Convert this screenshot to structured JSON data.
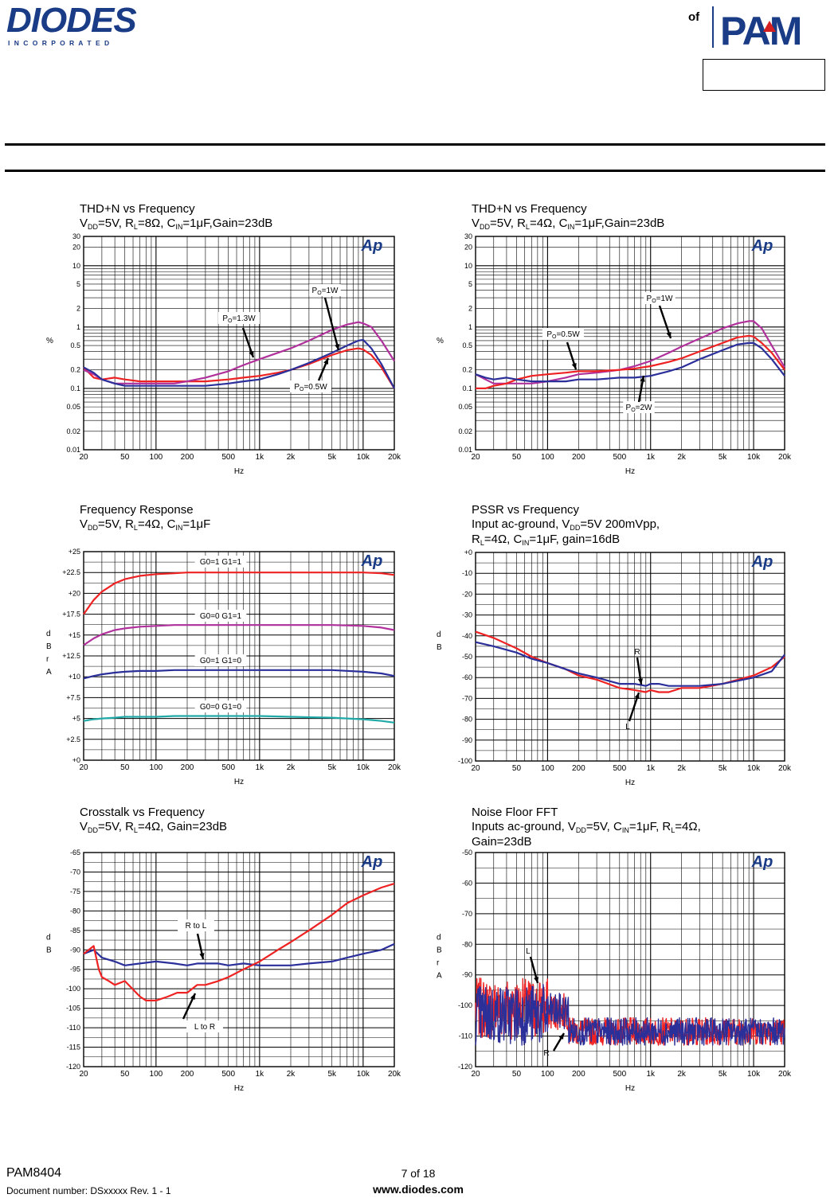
{
  "header": {
    "left_logo_text": "DIODES",
    "left_logo_sub": "I N C O R P O R A T E D",
    "right_of": "of",
    "right_logo_text": "PAM",
    "right_box": ""
  },
  "footer": {
    "part": "PAM8404",
    "doc_number": "Document number: DSxxxxx Rev. 1 - 1",
    "page": "7 of 18",
    "website": "www.diodes.com"
  },
  "colors": {
    "red": "#ee2222",
    "magenta": "#b0309c",
    "blue": "#2b2f9a",
    "teal": "#22aaa8",
    "grid": "#000000"
  },
  "charts": [
    {
      "id": "thdn-8ohm",
      "title": "THD+N vs Frequency",
      "subtitle_parts": [
        [
          "V",
          "n"
        ],
        [
          "DD",
          "s"
        ],
        [
          "=5V, R",
          "n"
        ],
        [
          "L",
          "s"
        ],
        [
          "=8Ω, C",
          "n"
        ],
        [
          "IN",
          "s"
        ],
        [
          "=1μF,Gain=23dB",
          "n"
        ]
      ],
      "ylabel": "%",
      "xlabel": "Hz",
      "yticks": [
        "30",
        "20",
        "10",
        "5",
        "2",
        "1",
        "0.5",
        "0.2",
        "0.1",
        "0.05",
        "0.02",
        "0.01"
      ],
      "xticks": [
        "20",
        "50",
        "100",
        "200",
        "500",
        "1k",
        "2k",
        "5k",
        "10k",
        "20k"
      ],
      "annotations": [
        "PO=1W",
        "PO=1.3W",
        "PO=0.5W"
      ]
    },
    {
      "id": "thdn-4ohm",
      "title": "THD+N vs Frequency",
      "subtitle_parts": [
        [
          "V",
          "n"
        ],
        [
          "DD",
          "s"
        ],
        [
          "=5V, R",
          "n"
        ],
        [
          "L",
          "s"
        ],
        [
          "=4Ω, C",
          "n"
        ],
        [
          "IN",
          "s"
        ],
        [
          "=1μF,Gain=23dB",
          "n"
        ]
      ],
      "ylabel": "%",
      "xlabel": "Hz",
      "yticks": [
        "30",
        "20",
        "10",
        "5",
        "2",
        "1",
        "0.5",
        "0.2",
        "0.1",
        "0.05",
        "0.02",
        "0.01"
      ],
      "xticks": [
        "20",
        "50",
        "100",
        "200",
        "500",
        "1k",
        "2k",
        "5k",
        "10k",
        "20k"
      ],
      "annotations": [
        "PO=1W",
        "PO=0.5W",
        "PO=2W"
      ]
    },
    {
      "id": "freq-response",
      "title": "Frequency Response",
      "subtitle_parts": [
        [
          "V",
          "n"
        ],
        [
          "DD",
          "s"
        ],
        [
          "=5V, R",
          "n"
        ],
        [
          "L",
          "s"
        ],
        [
          "=4Ω, C",
          "n"
        ],
        [
          "IN",
          "s"
        ],
        [
          "=1μF",
          "n"
        ]
      ],
      "ylabel": "d B r A",
      "xlabel": "Hz",
      "yticks": [
        "+25",
        "+22.5",
        "+20",
        "+17.5",
        "+15",
        "+12.5",
        "+10",
        "+7.5",
        "+5",
        "+2.5",
        "+0"
      ],
      "xticks": [
        "20",
        "50",
        "100",
        "200",
        "500",
        "1k",
        "2k",
        "5k",
        "10k",
        "20k"
      ],
      "annotations": [
        "G0=1 G1=1",
        "G0=0 G1=1",
        "G0=1 G1=0",
        "G0=0 G1=0"
      ]
    },
    {
      "id": "psrr",
      "title": "PSSR vs Frequency",
      "subtitle_parts": [
        [
          "Input ac-ground, V",
          "n"
        ],
        [
          "DD",
          "s"
        ],
        [
          "=5V 200mVpp,",
          "n"
        ]
      ],
      "subtitle2_parts": [
        [
          "R",
          "n"
        ],
        [
          "L",
          "s"
        ],
        [
          "=4Ω, C",
          "n"
        ],
        [
          "IN",
          "s"
        ],
        [
          "=1μF, gain=16dB",
          "n"
        ]
      ],
      "ylabel": "d B",
      "xlabel": "Hz",
      "yticks": [
        "+0",
        "-10",
        "-20",
        "-30",
        "-40",
        "-50",
        "-60",
        "-70",
        "-80",
        "-90",
        "-100"
      ],
      "xticks": [
        "20",
        "50",
        "100",
        "200",
        "500",
        "1k",
        "2k",
        "5k",
        "10k",
        "20k"
      ],
      "annotations": [
        "R",
        "L"
      ]
    },
    {
      "id": "crosstalk",
      "title": "Crosstalk vs Frequency",
      "subtitle_parts": [
        [
          "V",
          "n"
        ],
        [
          "DD",
          "s"
        ],
        [
          "=5V, R",
          "n"
        ],
        [
          "L",
          "s"
        ],
        [
          "=4Ω, Gain=23dB",
          "n"
        ]
      ],
      "ylabel": "d B",
      "xlabel": "Hz",
      "yticks": [
        "-65",
        "-70",
        "-75",
        "-80",
        "-85",
        "-90",
        "-95",
        "-100",
        "-105",
        "-110",
        "-115",
        "-120"
      ],
      "xticks": [
        "20",
        "50",
        "100",
        "200",
        "500",
        "1k",
        "2k",
        "5k",
        "10k",
        "20k"
      ],
      "annotations": [
        "R to L",
        "L to R"
      ]
    },
    {
      "id": "noise-fft",
      "title": "Noise Floor FFT",
      "subtitle_parts": [
        [
          "Inputs ac-ground, V",
          "n"
        ],
        [
          "DD",
          "s"
        ],
        [
          "=5V, C",
          "n"
        ],
        [
          "IN",
          "s"
        ],
        [
          "=1μF, R",
          "n"
        ],
        [
          "L",
          "s"
        ],
        [
          "=4Ω,",
          "n"
        ]
      ],
      "subtitle2_parts": [
        [
          "Gain=23dB",
          "n"
        ]
      ],
      "ylabel": "d B r A",
      "xlabel": "Hz",
      "yticks": [
        "-50",
        "-60",
        "-70",
        "-80",
        "-90",
        "-100",
        "-110",
        "-120"
      ],
      "xticks": [
        "20",
        "50",
        "100",
        "200",
        "500",
        "1k",
        "2k",
        "5k",
        "10k",
        "20k"
      ],
      "annotations": [
        "L",
        "R"
      ]
    }
  ],
  "chart_data": [
    {
      "type": "line",
      "x_scale": "log",
      "y_scale": "log",
      "xlim": [
        20,
        20000
      ],
      "ylim": [
        0.01,
        30
      ],
      "series": [
        {
          "name": "PO=1W",
          "color": "#ee2222",
          "x": [
            20,
            25,
            30,
            40,
            50,
            70,
            100,
            150,
            200,
            300,
            500,
            700,
            1000,
            1500,
            2000,
            3000,
            5000,
            7000,
            9000,
            10000,
            12000,
            15000,
            20000
          ],
          "y": [
            0.22,
            0.15,
            0.14,
            0.15,
            0.14,
            0.13,
            0.13,
            0.13,
            0.13,
            0.13,
            0.14,
            0.15,
            0.16,
            0.18,
            0.2,
            0.25,
            0.35,
            0.42,
            0.45,
            0.43,
            0.35,
            0.22,
            0.1
          ]
        },
        {
          "name": "PO=1.3W",
          "color": "#b0309c",
          "x": [
            20,
            25,
            30,
            40,
            50,
            70,
            100,
            150,
            200,
            300,
            500,
            700,
            1000,
            1500,
            2000,
            3000,
            5000,
            7000,
            9000,
            10000,
            12000,
            15000,
            20000
          ],
          "y": [
            0.2,
            0.17,
            0.14,
            0.12,
            0.12,
            0.12,
            0.12,
            0.12,
            0.13,
            0.15,
            0.19,
            0.24,
            0.3,
            0.38,
            0.45,
            0.6,
            0.9,
            1.1,
            1.2,
            1.15,
            1.0,
            0.6,
            0.28
          ]
        },
        {
          "name": "PO=0.5W",
          "color": "#2b2f9a",
          "x": [
            20,
            25,
            30,
            40,
            50,
            70,
            100,
            150,
            200,
            300,
            500,
            700,
            1000,
            1500,
            2000,
            3000,
            5000,
            7000,
            9000,
            10000,
            12000,
            15000,
            20000
          ],
          "y": [
            0.22,
            0.18,
            0.14,
            0.12,
            0.11,
            0.11,
            0.11,
            0.11,
            0.11,
            0.11,
            0.12,
            0.13,
            0.14,
            0.17,
            0.2,
            0.26,
            0.38,
            0.5,
            0.6,
            0.62,
            0.45,
            0.25,
            0.1
          ]
        }
      ]
    },
    {
      "type": "line",
      "x_scale": "log",
      "y_scale": "log",
      "xlim": [
        20,
        20000
      ],
      "ylim": [
        0.01,
        30
      ],
      "series": [
        {
          "name": "PO=1W",
          "color": "#b0309c",
          "x": [
            20,
            25,
            30,
            40,
            50,
            70,
            100,
            150,
            200,
            300,
            500,
            700,
            1000,
            1500,
            2000,
            3000,
            5000,
            7000,
            9000,
            10000,
            12000,
            15000,
            20000
          ],
          "y": [
            0.17,
            0.14,
            0.12,
            0.12,
            0.12,
            0.12,
            0.13,
            0.15,
            0.17,
            0.18,
            0.2,
            0.23,
            0.28,
            0.38,
            0.48,
            0.65,
            0.95,
            1.15,
            1.25,
            1.25,
            0.95,
            0.5,
            0.22
          ]
        },
        {
          "name": "PO=0.5W",
          "color": "#ee2222",
          "x": [
            20,
            25,
            30,
            40,
            50,
            70,
            100,
            150,
            200,
            300,
            500,
            700,
            1000,
            1500,
            2000,
            3000,
            5000,
            7000,
            9000,
            10000,
            12000,
            15000,
            20000
          ],
          "y": [
            0.1,
            0.1,
            0.11,
            0.12,
            0.14,
            0.16,
            0.17,
            0.18,
            0.19,
            0.19,
            0.2,
            0.21,
            0.23,
            0.27,
            0.31,
            0.4,
            0.55,
            0.68,
            0.72,
            0.7,
            0.55,
            0.38,
            0.2
          ]
        },
        {
          "name": "PO=2W",
          "color": "#2b2f9a",
          "x": [
            20,
            25,
            30,
            40,
            50,
            70,
            100,
            150,
            200,
            300,
            500,
            700,
            1000,
            1500,
            2000,
            3000,
            5000,
            7000,
            9000,
            10000,
            12000,
            15000,
            20000
          ],
          "y": [
            0.17,
            0.15,
            0.14,
            0.15,
            0.14,
            0.13,
            0.13,
            0.13,
            0.14,
            0.14,
            0.15,
            0.15,
            0.16,
            0.19,
            0.22,
            0.3,
            0.42,
            0.52,
            0.55,
            0.55,
            0.45,
            0.3,
            0.16
          ]
        }
      ]
    },
    {
      "type": "line",
      "x_scale": "log",
      "xlim": [
        20,
        20000
      ],
      "ylim": [
        0,
        25
      ],
      "series": [
        {
          "name": "G0=1 G1=1",
          "color": "#ee2222",
          "x": [
            20,
            25,
            30,
            40,
            50,
            70,
            100,
            150,
            200,
            300,
            500,
            1000,
            2000,
            5000,
            10000,
            15000,
            20000
          ],
          "y": [
            17.5,
            19.2,
            20.2,
            21.2,
            21.7,
            22.1,
            22.3,
            22.4,
            22.5,
            22.5,
            22.5,
            22.5,
            22.5,
            22.5,
            22.5,
            22.4,
            22.2
          ]
        },
        {
          "name": "G0=0 G1=1",
          "color": "#b0309c",
          "x": [
            20,
            25,
            30,
            40,
            50,
            70,
            100,
            150,
            200,
            300,
            500,
            1000,
            2000,
            5000,
            10000,
            15000,
            20000
          ],
          "y": [
            13.8,
            14.6,
            15.1,
            15.6,
            15.8,
            16.0,
            16.1,
            16.2,
            16.2,
            16.2,
            16.2,
            16.2,
            16.2,
            16.2,
            16.1,
            15.9,
            15.6
          ]
        },
        {
          "name": "G0=1 G1=0",
          "color": "#2b2f9a",
          "x": [
            20,
            25,
            30,
            40,
            50,
            70,
            100,
            150,
            200,
            300,
            500,
            1000,
            2000,
            5000,
            10000,
            15000,
            20000
          ],
          "y": [
            9.8,
            10.1,
            10.3,
            10.5,
            10.6,
            10.7,
            10.7,
            10.8,
            10.8,
            10.8,
            10.8,
            10.8,
            10.8,
            10.8,
            10.6,
            10.4,
            10.1
          ]
        },
        {
          "name": "G0=0 G1=0",
          "color": "#22aaa8",
          "x": [
            20,
            25,
            30,
            40,
            50,
            70,
            100,
            150,
            200,
            300,
            500,
            1000,
            2000,
            5000,
            10000,
            15000,
            20000
          ],
          "y": [
            4.7,
            4.9,
            5.0,
            5.1,
            5.2,
            5.2,
            5.2,
            5.3,
            5.3,
            5.3,
            5.3,
            5.3,
            5.2,
            5.1,
            4.9,
            4.7,
            4.5
          ]
        }
      ]
    },
    {
      "type": "line",
      "x_scale": "log",
      "xlim": [
        20,
        20000
      ],
      "ylim": [
        -100,
        0
      ],
      "series": [
        {
          "name": "R",
          "color": "#ee2222",
          "x": [
            20,
            30,
            50,
            70,
            100,
            150,
            200,
            300,
            500,
            700,
            900,
            1000,
            1200,
            1500,
            2000,
            3000,
            5000,
            10000,
            15000,
            20000
          ],
          "y": [
            -38,
            -41,
            -46,
            -50,
            -53,
            -56,
            -59,
            -61,
            -65,
            -66,
            -67,
            -66,
            -67,
            -67,
            -65,
            -65,
            -63,
            -59,
            -55,
            -50
          ]
        },
        {
          "name": "L",
          "color": "#2b2f9a",
          "x": [
            20,
            30,
            50,
            70,
            100,
            150,
            200,
            300,
            500,
            700,
            900,
            1000,
            1200,
            1500,
            2000,
            3000,
            5000,
            10000,
            15000,
            20000
          ],
          "y": [
            -43,
            -45,
            -48,
            -51,
            -53,
            -56,
            -58,
            -60,
            -63,
            -63,
            -64,
            -63,
            -63,
            -64,
            -64,
            -64,
            -63,
            -60,
            -57,
            -49
          ]
        }
      ]
    },
    {
      "type": "line",
      "x_scale": "log",
      "xlim": [
        20,
        20000
      ],
      "ylim": [
        -120,
        -65
      ],
      "series": [
        {
          "name": "R to L",
          "color": "#2b2f9a",
          "x": [
            20,
            25,
            30,
            40,
            50,
            70,
            100,
            150,
            200,
            250,
            300,
            400,
            500,
            700,
            1000,
            1500,
            2000,
            3000,
            5000,
            7000,
            10000,
            15000,
            20000
          ],
          "y": [
            -91,
            -90,
            -92,
            -93,
            -94,
            -93.5,
            -93,
            -93.5,
            -94,
            -93.5,
            -93.5,
            -93.5,
            -94,
            -93.5,
            -94,
            -94,
            -94,
            -93.5,
            -93,
            -92,
            -91,
            -90,
            -88.5
          ]
        },
        {
          "name": "L to R",
          "color": "#ee2222",
          "x": [
            20,
            25,
            28,
            30,
            35,
            40,
            50,
            70,
            80,
            100,
            130,
            160,
            200,
            250,
            300,
            400,
            500,
            700,
            1000,
            1500,
            2000,
            3000,
            5000,
            7000,
            10000,
            15000,
            20000
          ],
          "y": [
            -91,
            -89,
            -95,
            -97,
            -98,
            -99,
            -98,
            -102,
            -103,
            -103,
            -102,
            -101,
            -101,
            -99,
            -99,
            -98,
            -97,
            -95,
            -93,
            -90,
            -88,
            -85,
            -81,
            -78,
            -76,
            -74,
            -73
          ]
        }
      ]
    },
    {
      "type": "line",
      "x_scale": "log",
      "xlim": [
        20,
        20000
      ],
      "ylim": [
        -120,
        -50
      ],
      "series": [
        {
          "name": "L",
          "color": "#ee2222"
        },
        {
          "name": "R",
          "color": "#2b2f9a"
        }
      ]
    }
  ]
}
